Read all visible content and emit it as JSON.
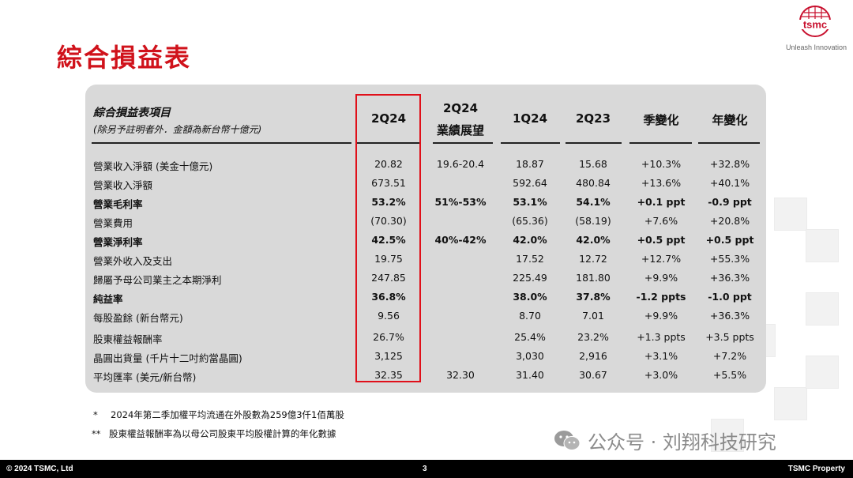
{
  "slide": {
    "title": "綜合損益表",
    "logo_text": "tsmc",
    "slogan": "Unleash Innovation"
  },
  "table": {
    "item_header_line1": "綜合損益表項目",
    "item_header_line2": "(除另予註明者外．金額為新台幣十億元)",
    "columns": [
      {
        "line1": "2Q24",
        "line2": ""
      },
      {
        "line1": "2Q24",
        "line2": "業績展望"
      },
      {
        "line1": "1Q24",
        "line2": ""
      },
      {
        "line1": "2Q23",
        "line2": ""
      },
      {
        "line1": "季變化",
        "line2": ""
      },
      {
        "line1": "年變化",
        "line2": ""
      }
    ],
    "rows": [
      {
        "label": "營業收入淨額 (美金十億元)",
        "bold": false,
        "cells": [
          "20.82",
          "19.6-20.4",
          "18.87",
          "15.68",
          "+10.3%",
          "+32.8%"
        ]
      },
      {
        "label": "營業收入淨額",
        "bold": false,
        "cells": [
          "673.51",
          "",
          "592.64",
          "480.84",
          "+13.6%",
          "+40.1%"
        ]
      },
      {
        "label": "營業毛利率",
        "bold": true,
        "cells": [
          "53.2%",
          "51%-53%",
          "53.1%",
          "54.1%",
          "+0.1 ppt",
          "-0.9 ppt"
        ]
      },
      {
        "label": "營業費用",
        "bold": false,
        "cells": [
          "(70.30)",
          "",
          "(65.36)",
          "(58.19)",
          "+7.6%",
          "+20.8%"
        ]
      },
      {
        "label": "營業淨利率",
        "bold": true,
        "cells": [
          "42.5%",
          "40%-42%",
          "42.0%",
          "42.0%",
          "+0.5 ppt",
          "+0.5 ppt"
        ]
      },
      {
        "label": "營業外收入及支出",
        "bold": false,
        "cells": [
          "19.75",
          "",
          "17.52",
          "12.72",
          "+12.7%",
          "+55.3%"
        ]
      },
      {
        "label": "歸屬予母公司業主之本期淨利",
        "bold": false,
        "cells": [
          "247.85",
          "",
          "225.49",
          "181.80",
          "+9.9%",
          "+36.3%"
        ]
      },
      {
        "label": "純益率",
        "bold": true,
        "cells": [
          "36.8%",
          "",
          "38.0%",
          "37.8%",
          "-1.2 ppts",
          "-1.0 ppt"
        ]
      },
      {
        "label": "每股盈餘 (新台幣元)",
        "bold": false,
        "cells": [
          "9.56",
          "",
          "8.70",
          "7.01",
          "+9.9%",
          "+36.3%"
        ]
      },
      {
        "label": "股東權益報酬率",
        "bold": false,
        "cells": [
          "26.7%",
          "",
          "25.4%",
          "23.2%",
          "+1.3 ppts",
          "+3.5 ppts"
        ]
      },
      {
        "label": "晶圓出貨量 (千片十二吋約當晶圓)",
        "bold": false,
        "cells": [
          "3,125",
          "",
          "3,030",
          "2,916",
          "+3.1%",
          "+7.2%"
        ]
      },
      {
        "label": "平均匯率 (美元/新台幣)",
        "bold": false,
        "cells": [
          "32.35",
          "32.30",
          "31.40",
          "30.67",
          "+3.0%",
          "+5.5%"
        ]
      }
    ]
  },
  "notes": [
    {
      "mark": "*",
      "text": "2024年第二季加權平均流通在外股數為259億3仟1佰萬股"
    },
    {
      "mark": "**",
      "text": "股東權益報酬率為以母公司股東平均股權計算的年化數據"
    }
  ],
  "watermark": "公众号 · 刘翔科技研究",
  "footer": {
    "copyright": "© 2024 TSMC, Ltd",
    "page": "3",
    "property": "TSMC Property"
  },
  "colors": {
    "title_red": "#d0121b",
    "highlight_red": "#e0101a",
    "panel_gray": "#d9d9d9"
  }
}
